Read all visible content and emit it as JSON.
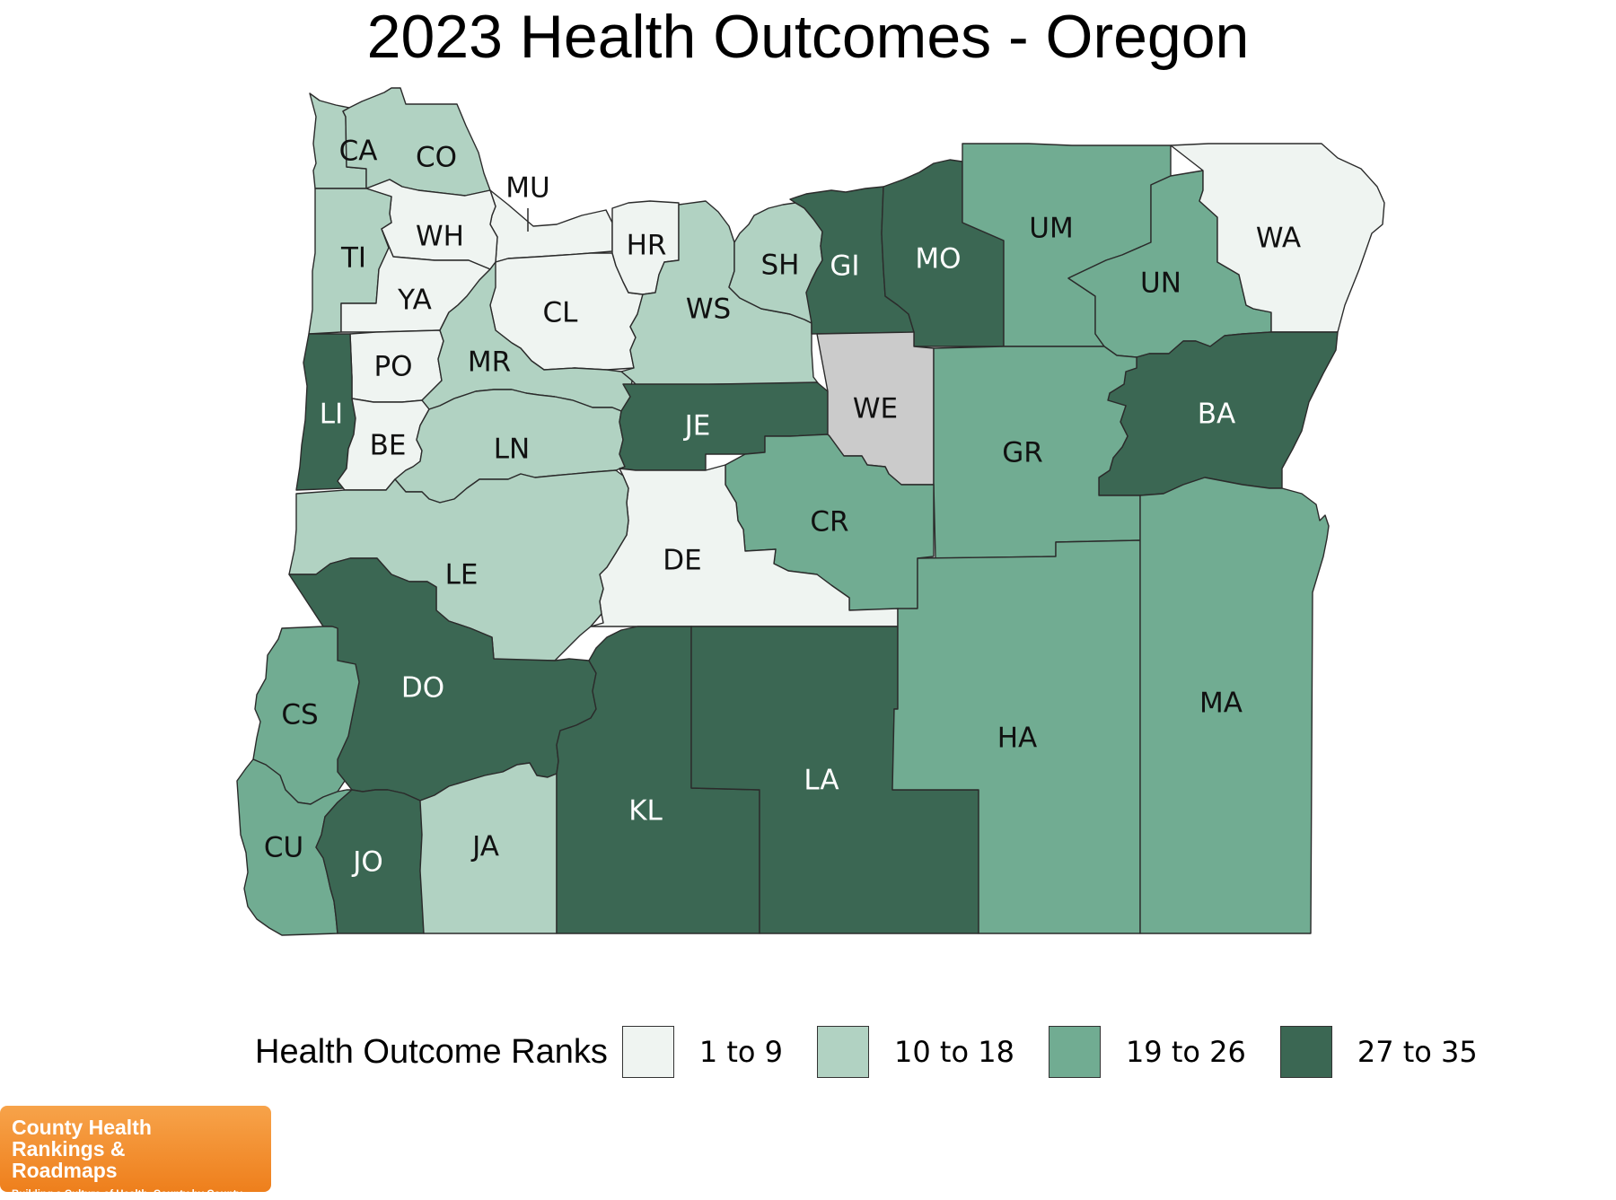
{
  "title": "2023 Health Outcomes - Oregon",
  "legend": {
    "title": "Health Outcome Ranks",
    "bins": [
      {
        "label": "1 to 9",
        "color": "#eff4f1"
      },
      {
        "label": "10 to 18",
        "color": "#b1d2c2"
      },
      {
        "label": "19 to 26",
        "color": "#71ac92"
      },
      {
        "label": "27 to 35",
        "color": "#3b6753"
      }
    ]
  },
  "no_data_color": "#cbcbcb",
  "counties": [
    {
      "code": "CA",
      "bin": 1
    },
    {
      "code": "CO",
      "bin": 1
    },
    {
      "code": "MU",
      "bin": 0
    },
    {
      "code": "WH",
      "bin": 0
    },
    {
      "code": "TI",
      "bin": 1
    },
    {
      "code": "YA",
      "bin": 0
    },
    {
      "code": "CL",
      "bin": 0
    },
    {
      "code": "HR",
      "bin": 0
    },
    {
      "code": "WS",
      "bin": 1
    },
    {
      "code": "SH",
      "bin": 1
    },
    {
      "code": "GI",
      "bin": 3
    },
    {
      "code": "MO",
      "bin": 3
    },
    {
      "code": "UM",
      "bin": 2
    },
    {
      "code": "UN",
      "bin": 2
    },
    {
      "code": "WA",
      "bin": 0
    },
    {
      "code": "PO",
      "bin": 0
    },
    {
      "code": "MR",
      "bin": 1
    },
    {
      "code": "LI",
      "bin": 3
    },
    {
      "code": "BE",
      "bin": 0
    },
    {
      "code": "LN",
      "bin": 1
    },
    {
      "code": "JE",
      "bin": 3
    },
    {
      "code": "WE",
      "bin": null
    },
    {
      "code": "BA",
      "bin": 3
    },
    {
      "code": "GR",
      "bin": 2
    },
    {
      "code": "CR",
      "bin": 2
    },
    {
      "code": "DE",
      "bin": 0
    },
    {
      "code": "LE",
      "bin": 1
    },
    {
      "code": "DO",
      "bin": 3
    },
    {
      "code": "CS",
      "bin": 2
    },
    {
      "code": "CU",
      "bin": 2
    },
    {
      "code": "JO",
      "bin": 3
    },
    {
      "code": "JA",
      "bin": 1
    },
    {
      "code": "KL",
      "bin": 3
    },
    {
      "code": "LA",
      "bin": 3
    },
    {
      "code": "HA",
      "bin": 2
    },
    {
      "code": "MA",
      "bin": 2
    }
  ],
  "branding": {
    "name": "County Health Rankings & Roadmaps",
    "tagline": "Building a Culture of Health, County by County"
  }
}
